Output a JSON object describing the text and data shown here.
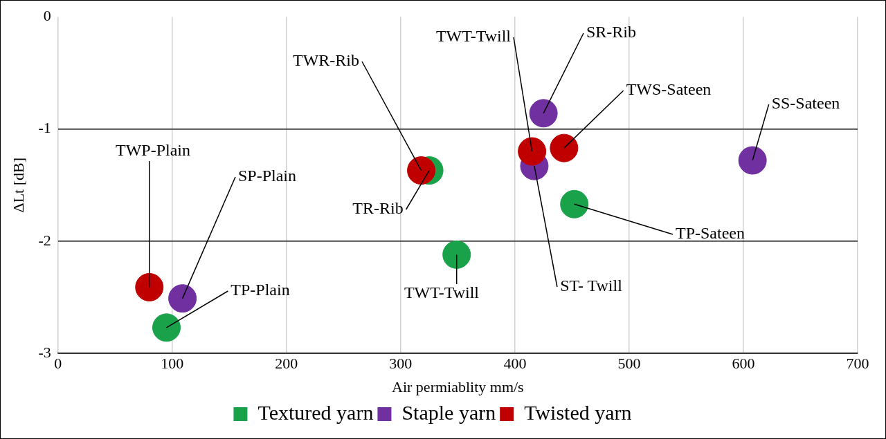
{
  "chart_data": {
    "type": "scatter",
    "xlabel": "Air permiablity mm/s",
    "ylabel": "ΔLt [dB]",
    "xlim": [
      0,
      700
    ],
    "xticks": [
      0,
      100,
      200,
      300,
      400,
      500,
      600,
      700
    ],
    "ylim": [
      -3,
      0
    ],
    "yticks": [
      -3,
      -2,
      -1,
      0
    ],
    "grid": true,
    "legend": "bottom",
    "marker": "circle",
    "series": [
      {
        "name": "Textured yarn",
        "color": "#1aa24a",
        "x": [
          95,
          325,
          349,
          452
        ],
        "values": [
          -2.77,
          -1.37,
          -2.12,
          -1.67
        ]
      },
      {
        "name": "Staple yarn",
        "color": "#7030a0",
        "x": [
          109,
          425,
          417,
          608
        ],
        "values": [
          -2.51,
          -0.86,
          -1.33,
          -1.28
        ]
      },
      {
        "name": "Twisted yarn",
        "color": "#c00000",
        "x": [
          80,
          318,
          415,
          443
        ],
        "values": [
          -2.41,
          -1.37,
          -1.2,
          -1.17
        ]
      }
    ],
    "annotations": [
      {
        "text": "TWP-Plain",
        "x": 80,
        "y": -2.41
      },
      {
        "text": "SP-Plain",
        "x": 109,
        "y": -2.51
      },
      {
        "text": "TP-Plain",
        "x": 95,
        "y": -2.77
      },
      {
        "text": "TWR-Rib",
        "x": 318,
        "y": -1.37
      },
      {
        "text": "TR-Rib",
        "x": 325,
        "y": -1.37
      },
      {
        "text": "TWT-Twill",
        "x": 349,
        "y": -2.12
      },
      {
        "text": "TWT-Twill",
        "x": 415,
        "y": -1.2
      },
      {
        "text": "SR-Rib",
        "x": 425,
        "y": -0.86
      },
      {
        "text": "TWS-Sateen",
        "x": 443,
        "y": -1.17
      },
      {
        "text": "SS-Sateen",
        "x": 608,
        "y": -1.28
      },
      {
        "text": "TP-Sateen",
        "x": 452,
        "y": -1.67
      },
      {
        "text": "ST- Twill",
        "x": 417,
        "y": -1.33
      }
    ]
  }
}
